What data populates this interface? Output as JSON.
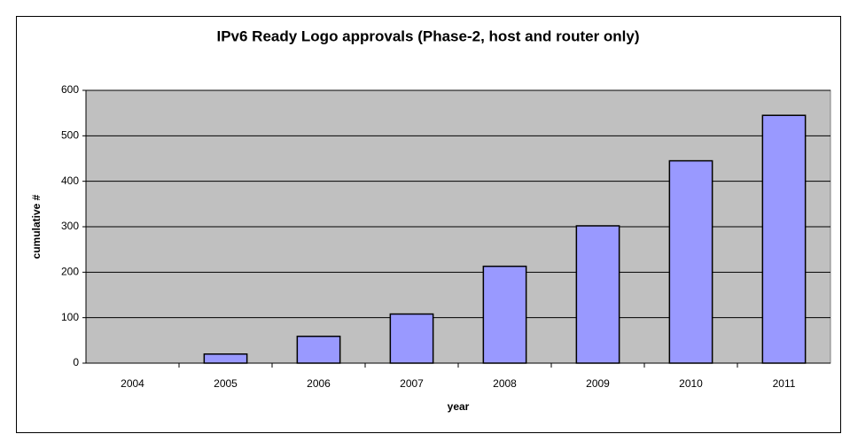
{
  "chart_data": {
    "type": "bar",
    "title": "IPv6 Ready Logo approvals (Phase-2, host and router only)",
    "x_label": "year",
    "y_label": "cumulative #",
    "categories": [
      "2004",
      "2005",
      "2006",
      "2007",
      "2008",
      "2009",
      "2010",
      "2011"
    ],
    "values": [
      0,
      20,
      59,
      108,
      213,
      302,
      445,
      545
    ],
    "color": "#9999ff",
    "ylim": [
      0,
      600
    ],
    "yticks": [
      0,
      100,
      200,
      300,
      400,
      500,
      600
    ],
    "grid": true
  }
}
